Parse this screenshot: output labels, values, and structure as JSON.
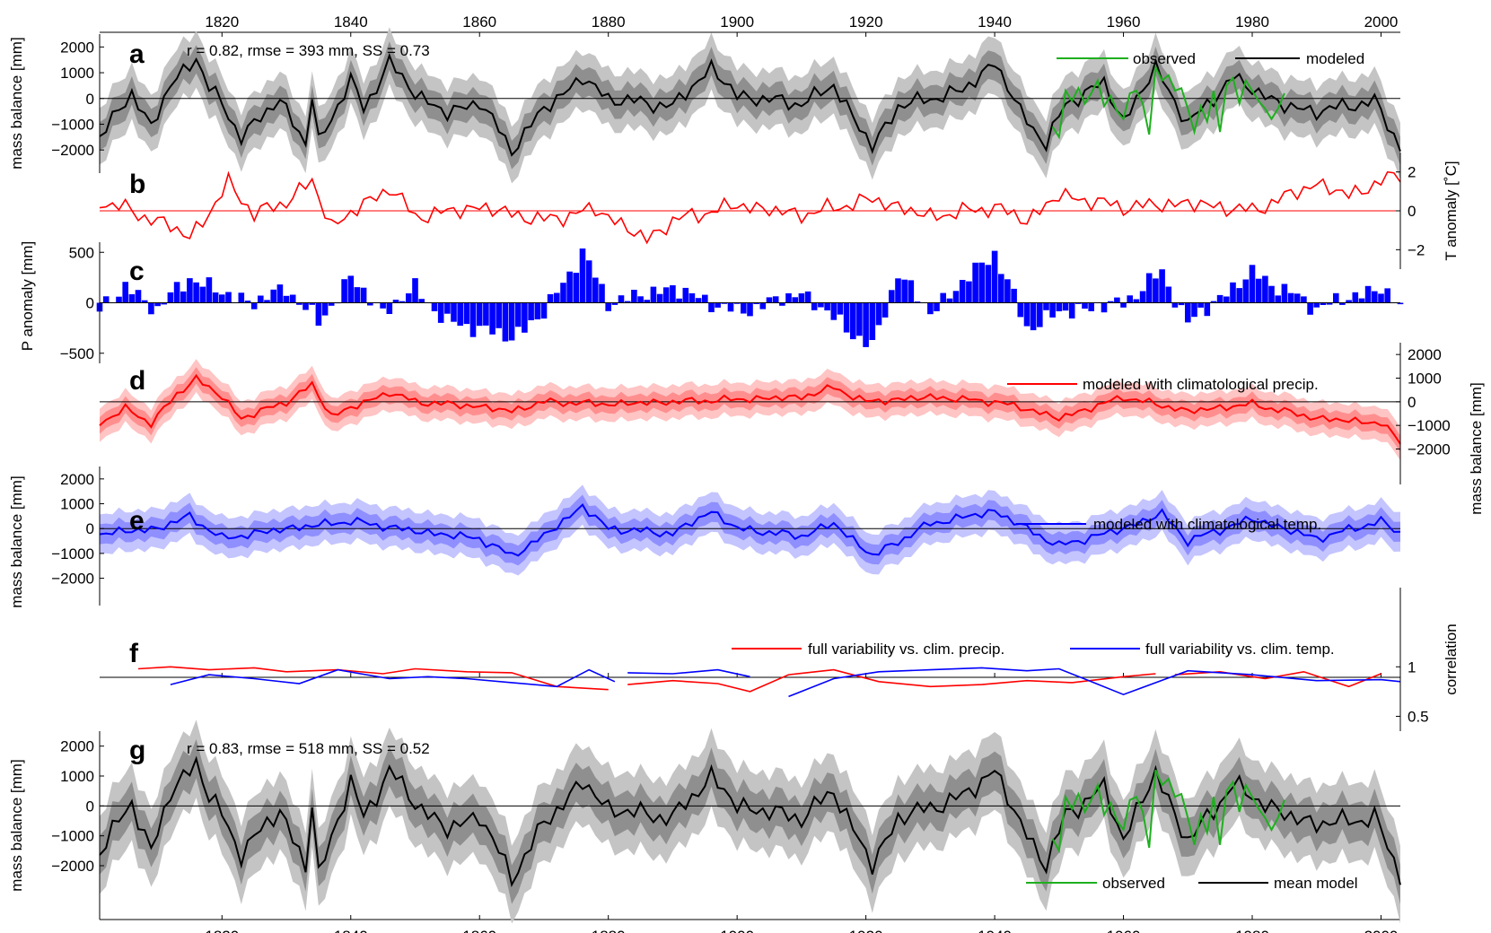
{
  "figure": {
    "years_start": 1801,
    "years_end": 2003,
    "x_ticks": [
      1820,
      1840,
      1860,
      1880,
      1900,
      1920,
      1940,
      1960,
      1980,
      2000
    ],
    "x_tick_labels": [
      "1820",
      "1840",
      "1860",
      "1880",
      "1900",
      "1920",
      "1940",
      "1960",
      "1980",
      "2000"
    ],
    "colors": {
      "modeled": "#000000",
      "observed": "#1faf1f",
      "temperature": "#ff0000",
      "precip": "#0000ff",
      "band_gray_outer": "#c4c4c4",
      "band_gray_mid": "#8f8f8f",
      "band_red_outer": "#ffc4c4",
      "band_red_mid": "#ff8f8f",
      "band_blue_outer": "#c4c4ff",
      "band_blue_mid": "#8f8fff"
    }
  },
  "chart_data": [
    {
      "panel": "a",
      "type": "line",
      "ylabel": "mass balance [mm]",
      "ylim": [
        -2900,
        2500
      ],
      "yticks": [
        -2000,
        -1000,
        0,
        1000,
        2000
      ],
      "ytick_labels": [
        "−2000",
        "−1000",
        "0",
        "1000",
        "2000"
      ],
      "stats": "r = 0.82, rmse = 393 mm, SS = 0.73",
      "legend": [
        "observed",
        "modeled"
      ],
      "legend_position": "top-right",
      "anchor_years": [
        1801,
        1806,
        1809,
        1812,
        1816,
        1818,
        1820,
        1823,
        1829,
        1833,
        1834,
        1835,
        1840,
        1842,
        1846,
        1850,
        1855,
        1860,
        1865,
        1870,
        1876,
        1880,
        1890,
        1896,
        1900,
        1910,
        1915,
        1921,
        1925,
        1935,
        1940,
        1944,
        1948,
        1951,
        1957,
        1960,
        1965,
        1970,
        1977,
        1985,
        1990,
        1999,
        2003
      ],
      "anchor_values": [
        -1500,
        200,
        -1100,
        500,
        1600,
        400,
        -200,
        -1500,
        0,
        -1800,
        100,
        -1700,
        700,
        -400,
        1400,
        200,
        -600,
        -100,
        -2000,
        -400,
        800,
        0,
        -300,
        1200,
        100,
        -200,
        500,
        -1900,
        -300,
        300,
        1400,
        -500,
        -1800,
        -200,
        600,
        -900,
        1200,
        -1000,
        800,
        -300,
        -500,
        -100,
        -1900
      ]
    },
    {
      "panel": "b",
      "type": "line",
      "ylabel": "T anomaly [˚C]",
      "ylim": [
        -3.0,
        3.0
      ],
      "yticks": [
        -2,
        0,
        2
      ],
      "ytick_labels": [
        "−2",
        "0",
        "2"
      ],
      "anchor_years": [
        1801,
        1805,
        1812,
        1815,
        1818,
        1821,
        1825,
        1830,
        1834,
        1837,
        1846,
        1850,
        1860,
        1870,
        1878,
        1886,
        1890,
        1900,
        1910,
        1921,
        1930,
        1940,
        1945,
        1950,
        1960,
        1970,
        1980,
        1990,
        1995,
        2003
      ],
      "anchor_values": [
        0.5,
        0.1,
        -0.8,
        -1.3,
        -0.2,
        1.5,
        -0.2,
        0.5,
        1.5,
        -0.8,
        1.2,
        -0.3,
        0.2,
        -0.5,
        0.1,
        -1.5,
        -0.5,
        0.3,
        -0.2,
        0.6,
        -0.3,
        0.2,
        -0.5,
        0.8,
        0.2,
        0.4,
        0.0,
        1.4,
        0.8,
        1.9
      ]
    },
    {
      "panel": "c",
      "type": "bar",
      "ylabel": "P anomaly [mm]",
      "ylim": [
        -600,
        600
      ],
      "yticks": [
        -500,
        0,
        500
      ],
      "ytick_labels": [
        "−500",
        "0",
        "500"
      ],
      "anchor_years": [
        1801,
        1805,
        1810,
        1815,
        1820,
        1825,
        1830,
        1835,
        1840,
        1845,
        1850,
        1855,
        1860,
        1865,
        1870,
        1876,
        1880,
        1890,
        1900,
        1910,
        1921,
        1925,
        1930,
        1940,
        1945,
        1950,
        1960,
        1966,
        1970,
        1980,
        1990,
        2000,
        2003
      ],
      "anchor_values": [
        -50,
        150,
        -60,
        250,
        100,
        0,
        150,
        -200,
        250,
        -100,
        150,
        -200,
        -250,
        -350,
        -100,
        500,
        0,
        150,
        -100,
        100,
        -450,
        300,
        -100,
        500,
        -250,
        -100,
        0,
        300,
        -200,
        300,
        -50,
        150,
        -50
      ]
    },
    {
      "panel": "d",
      "type": "line",
      "ylabel": "mass balance [mm]",
      "ylim": [
        -3500,
        2500
      ],
      "yticks": [
        -2000,
        -1000,
        0,
        1000,
        2000
      ],
      "ytick_labels": [
        "−2000",
        "−1000",
        "0",
        "1000",
        "2000"
      ],
      "legend": [
        "modeled with climatological precip."
      ],
      "legend_position": "top-right",
      "anchor_years": [
        1801,
        1805,
        1809,
        1813,
        1816,
        1820,
        1823,
        1830,
        1834,
        1837,
        1846,
        1850,
        1860,
        1865,
        1870,
        1880,
        1890,
        1900,
        1910,
        1915,
        1920,
        1930,
        1940,
        1945,
        1950,
        1960,
        1970,
        1980,
        1990,
        2000,
        2003
      ],
      "anchor_values": [
        -900,
        -300,
        -900,
        300,
        1000,
        200,
        -700,
        0,
        700,
        -600,
        400,
        0,
        -200,
        -400,
        0,
        -100,
        0,
        100,
        200,
        600,
        0,
        200,
        0,
        -300,
        -700,
        200,
        -400,
        -100,
        -700,
        -900,
        -1700
      ]
    },
    {
      "panel": "e",
      "type": "line",
      "ylabel": "mass balance [mm]",
      "ylim": [
        -3100,
        2500
      ],
      "yticks": [
        -2000,
        -1000,
        0,
        1000,
        2000
      ],
      "ytick_labels": [
        "−2000",
        "−1000",
        "0",
        "1000",
        "2000"
      ],
      "legend": [
        "modeled with climatological temp."
      ],
      "legend_position": "top-right",
      "anchor_years": [
        1801,
        1810,
        1815,
        1820,
        1830,
        1840,
        1850,
        1860,
        1865,
        1870,
        1876,
        1880,
        1890,
        1896,
        1900,
        1910,
        1915,
        1921,
        1930,
        1940,
        1950,
        1960,
        1966,
        1970,
        1980,
        1990,
        2000,
        2003
      ],
      "anchor_values": [
        -200,
        0,
        500,
        -400,
        0,
        300,
        -100,
        -400,
        -1100,
        -300,
        900,
        0,
        -200,
        700,
        0,
        -300,
        200,
        -1100,
        200,
        700,
        -700,
        0,
        600,
        -500,
        400,
        -400,
        300,
        -200
      ]
    },
    {
      "panel": "f",
      "type": "line",
      "ylabel": "correlation",
      "ylim": [
        0.35,
        1.8
      ],
      "yticks": [
        0.5,
        1
      ],
      "ytick_labels": [
        "0.5",
        "1"
      ],
      "legend": [
        "full variability vs. clim. precip.",
        "full variability vs. clim. temp."
      ],
      "legend_position": "top-right",
      "series": [
        {
          "name": "full variability vs. clim. precip.",
          "segments": [
            {
              "x": [
                1807,
                1812,
                1818,
                1825,
                1830,
                1838,
                1845,
                1850,
                1858,
                1865,
                1872,
                1880
              ],
              "y": [
                0.98,
                1.0,
                0.97,
                0.99,
                0.95,
                0.97,
                0.93,
                0.98,
                0.95,
                0.94,
                0.8,
                0.77
              ]
            },
            {
              "x": [
                1883,
                1890,
                1897,
                1902,
                1908,
                1915,
                1922,
                1930,
                1938,
                1945,
                1952,
                1960,
                1965
              ],
              "y": [
                0.82,
                0.86,
                0.83,
                0.75,
                0.92,
                0.97,
                0.85,
                0.8,
                0.82,
                0.86,
                0.84,
                0.9,
                0.93
              ]
            },
            {
              "x": [
                1968,
                1975,
                1982,
                1988,
                1995,
                2000
              ],
              "y": [
                0.92,
                0.95,
                0.88,
                0.95,
                0.8,
                0.93
              ]
            }
          ]
        },
        {
          "name": "full variability vs. clim. temp.",
          "segments": [
            {
              "x": [
                1812,
                1818,
                1825,
                1832,
                1838,
                1846,
                1852,
                1858,
                1865,
                1872,
                1877,
                1881
              ],
              "y": [
                0.82,
                0.92,
                0.88,
                0.83,
                0.97,
                0.88,
                0.9,
                0.88,
                0.84,
                0.8,
                0.97,
                0.85
              ]
            },
            {
              "x": [
                1883,
                1890,
                1897,
                1902
              ],
              "y": [
                0.94,
                0.93,
                0.97,
                0.9
              ]
            },
            {
              "x": [
                1908,
                1915,
                1922,
                1930,
                1938,
                1945,
                1950,
                1955,
                1960,
                1970,
                1980,
                1990,
                2000,
                2003
              ],
              "y": [
                0.7,
                0.88,
                0.95,
                0.97,
                0.99,
                0.96,
                0.98,
                0.85,
                0.72,
                0.96,
                0.92,
                0.86,
                0.87,
                0.85
              ]
            }
          ]
        }
      ]
    },
    {
      "panel": "g",
      "type": "line",
      "ylabel": "mass balance [mm]",
      "ylim": [
        -3800,
        2500
      ],
      "yticks": [
        -2000,
        -1000,
        0,
        1000,
        2000
      ],
      "ytick_labels": [
        "−2000",
        "−1000",
        "0",
        "1000",
        "2000"
      ],
      "stats": "r = 0.83, rmse = 518 mm, SS = 0.52",
      "legend": [
        "observed",
        "mean model"
      ],
      "legend_position": "bottom-right",
      "anchor_years": [
        1801,
        1806,
        1809,
        1812,
        1816,
        1818,
        1820,
        1823,
        1829,
        1833,
        1834,
        1835,
        1840,
        1842,
        1846,
        1850,
        1855,
        1860,
        1865,
        1870,
        1876,
        1880,
        1890,
        1896,
        1900,
        1910,
        1915,
        1921,
        1925,
        1935,
        1940,
        1944,
        1948,
        1951,
        1957,
        1960,
        1965,
        1970,
        1977,
        1985,
        1990,
        1999,
        2003
      ],
      "anchor_values": [
        -1500,
        100,
        -1500,
        400,
        1500,
        300,
        -300,
        -1600,
        -100,
        -2100,
        100,
        -2300,
        800,
        -400,
        1200,
        100,
        -800,
        -300,
        -2400,
        -600,
        800,
        -100,
        -400,
        1000,
        0,
        -400,
        500,
        -2000,
        -400,
        300,
        1200,
        -600,
        -2000,
        -300,
        600,
        -1100,
        1100,
        -1200,
        700,
        -300,
        -600,
        -400,
        -2300
      ]
    }
  ],
  "observed": {
    "years": [
      1949,
      1950,
      1951,
      1952,
      1953,
      1954,
      1955,
      1956,
      1957,
      1958,
      1959,
      1960,
      1961,
      1962,
      1963,
      1964,
      1965,
      1966,
      1967,
      1968,
      1969,
      1970,
      1971,
      1972,
      1973,
      1974,
      1975,
      1976,
      1977,
      1978,
      1979,
      1980,
      1981,
      1982,
      1983,
      1984,
      1985
    ],
    "values": [
      -1100,
      -1500,
      300,
      -100,
      400,
      -200,
      200,
      700,
      -300,
      100,
      -500,
      -800,
      200,
      300,
      -200,
      -1400,
      1200,
      700,
      900,
      300,
      400,
      -400,
      -1300,
      -300,
      -900,
      300,
      -1300,
      500,
      800,
      -200,
      700,
      300,
      -100,
      -400,
      -800,
      -400,
      200
    ]
  },
  "panel_letters": [
    "a",
    "b",
    "c",
    "d",
    "e",
    "f",
    "g"
  ]
}
